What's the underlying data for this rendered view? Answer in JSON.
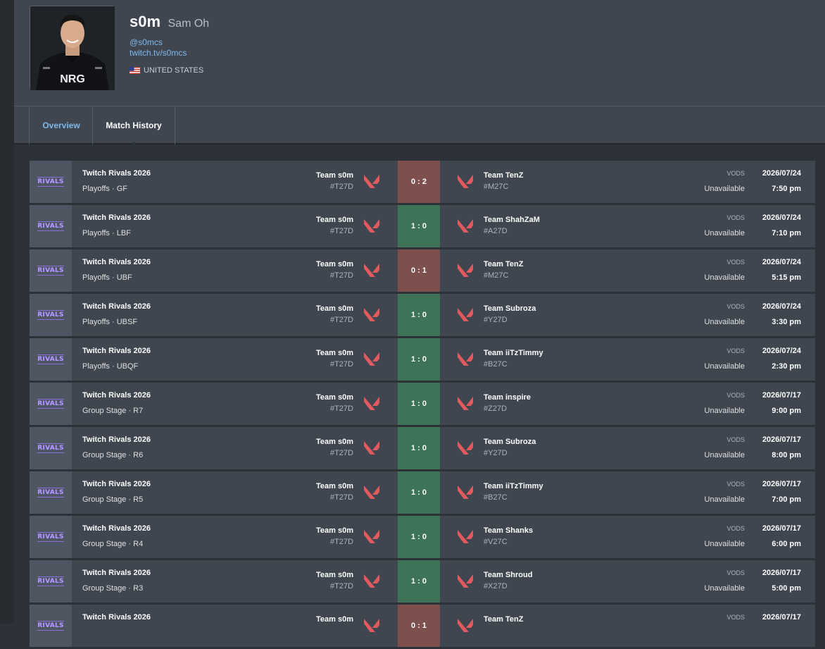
{
  "profile": {
    "handle": "s0m",
    "real_name": "Sam Oh",
    "twitter": "@s0mcs",
    "twitch": "twitch.tv/s0mcs",
    "country": "UNITED STATES",
    "flag_icon": "us-flag-icon",
    "jersey_text": "NRG"
  },
  "tabs": [
    {
      "label": "Overview",
      "active": false
    },
    {
      "label": "Match History",
      "active": true
    }
  ],
  "colors": {
    "win": "#3d7356",
    "loss": "#7d4f4d",
    "link": "#7fb9ec",
    "agent_icon": "#e25a5e"
  },
  "matches": [
    {
      "logo": "RIVALS",
      "event": "Twitch Rivals 2026",
      "stage": "Playoffs · GF",
      "team_a": "Team s0m",
      "tag_a": "#T27D",
      "score": "0 : 2",
      "result": "loss",
      "team_b": "Team TenZ",
      "tag_b": "#M27C",
      "vods_label": "VODS",
      "vods_status": "Unavailable",
      "date": "2026/07/24",
      "time": "7:50 pm"
    },
    {
      "logo": "RIVALS",
      "event": "Twitch Rivals 2026",
      "stage": "Playoffs · LBF",
      "team_a": "Team s0m",
      "tag_a": "#T27D",
      "score": "1 : 0",
      "result": "win",
      "team_b": "Team ShahZaM",
      "tag_b": "#A27D",
      "vods_label": "VODS",
      "vods_status": "Unavailable",
      "date": "2026/07/24",
      "time": "7:10 pm"
    },
    {
      "logo": "RIVALS",
      "event": "Twitch Rivals 2026",
      "stage": "Playoffs · UBF",
      "team_a": "Team s0m",
      "tag_a": "#T27D",
      "score": "0 : 1",
      "result": "loss",
      "team_b": "Team TenZ",
      "tag_b": "#M27C",
      "vods_label": "VODS",
      "vods_status": "Unavailable",
      "date": "2026/07/24",
      "time": "5:15 pm"
    },
    {
      "logo": "RIVALS",
      "event": "Twitch Rivals 2026",
      "stage": "Playoffs · UBSF",
      "team_a": "Team s0m",
      "tag_a": "#T27D",
      "score": "1 : 0",
      "result": "win",
      "team_b": "Team Subroza",
      "tag_b": "#Y27D",
      "vods_label": "VODS",
      "vods_status": "Unavailable",
      "date": "2026/07/24",
      "time": "3:30 pm"
    },
    {
      "logo": "RIVALS",
      "event": "Twitch Rivals 2026",
      "stage": "Playoffs · UBQF",
      "team_a": "Team s0m",
      "tag_a": "#T27D",
      "score": "1 : 0",
      "result": "win",
      "team_b": "Team iiTzTimmy",
      "tag_b": "#B27C",
      "vods_label": "VODS",
      "vods_status": "Unavailable",
      "date": "2026/07/24",
      "time": "2:30 pm"
    },
    {
      "logo": "RIVALS",
      "event": "Twitch Rivals 2026",
      "stage": "Group Stage · R7",
      "team_a": "Team s0m",
      "tag_a": "#T27D",
      "score": "1 : 0",
      "result": "win",
      "team_b": "Team inspire",
      "tag_b": "#Z27D",
      "vods_label": "VODS",
      "vods_status": "Unavailable",
      "date": "2026/07/17",
      "time": "9:00 pm"
    },
    {
      "logo": "RIVALS",
      "event": "Twitch Rivals 2026",
      "stage": "Group Stage · R6",
      "team_a": "Team s0m",
      "tag_a": "#T27D",
      "score": "1 : 0",
      "result": "win",
      "team_b": "Team Subroza",
      "tag_b": "#Y27D",
      "vods_label": "VODS",
      "vods_status": "Unavailable",
      "date": "2026/07/17",
      "time": "8:00 pm"
    },
    {
      "logo": "RIVALS",
      "event": "Twitch Rivals 2026",
      "stage": "Group Stage · R5",
      "team_a": "Team s0m",
      "tag_a": "#T27D",
      "score": "1 : 0",
      "result": "win",
      "team_b": "Team iiTzTimmy",
      "tag_b": "#B27C",
      "vods_label": "VODS",
      "vods_status": "Unavailable",
      "date": "2026/07/17",
      "time": "7:00 pm"
    },
    {
      "logo": "RIVALS",
      "event": "Twitch Rivals 2026",
      "stage": "Group Stage · R4",
      "team_a": "Team s0m",
      "tag_a": "#T27D",
      "score": "1 : 0",
      "result": "win",
      "team_b": "Team Shanks",
      "tag_b": "#V27C",
      "vods_label": "VODS",
      "vods_status": "Unavailable",
      "date": "2026/07/17",
      "time": "6:00 pm"
    },
    {
      "logo": "RIVALS",
      "event": "Twitch Rivals 2026",
      "stage": "Group Stage · R3",
      "team_a": "Team s0m",
      "tag_a": "#T27D",
      "score": "1 : 0",
      "result": "win",
      "team_b": "Team Shroud",
      "tag_b": "#X27D",
      "vods_label": "VODS",
      "vods_status": "Unavailable",
      "date": "2026/07/17",
      "time": "5:00 pm"
    },
    {
      "logo": "RIVALS",
      "event": "Twitch Rivals 2026",
      "stage": "",
      "team_a": "Team s0m",
      "tag_a": "",
      "score": "0 : 1",
      "result": "loss",
      "team_b": "Team TenZ",
      "tag_b": "",
      "vods_label": "VODS",
      "vods_status": "",
      "date": "2026/07/17",
      "time": ""
    }
  ]
}
